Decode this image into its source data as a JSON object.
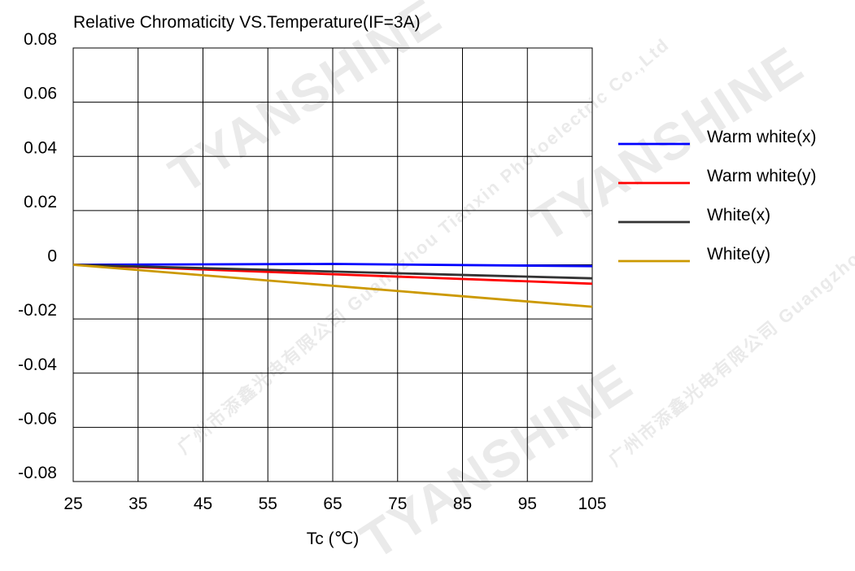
{
  "watermark": {
    "brand": "TYANSHINE",
    "company": "广州市添鑫光电有限公司 Guangzhou Tianxin Photoelectric Co.,Ltd"
  },
  "chart_data": {
    "type": "line",
    "title": "Relative Chromaticity VS.Temperature(IF=3A)",
    "xlabel": "Tc (℃)",
    "ylabel": "",
    "xlim": [
      25,
      105
    ],
    "ylim": [
      -0.08,
      0.08
    ],
    "x_ticks": [
      25,
      35,
      45,
      55,
      65,
      75,
      85,
      95,
      105
    ],
    "y_ticks": [
      0.08,
      0.06,
      0.04,
      0.02,
      0,
      -0.02,
      -0.04,
      -0.06,
      -0.08
    ],
    "y_tick_labels": [
      "0.08",
      "0.06",
      "0.04",
      "0.02",
      "0",
      "-0.02",
      "-0.04",
      "-0.06",
      "-0.08"
    ],
    "grid": true,
    "legend_position": "right",
    "series": [
      {
        "name": "Warm white(x)",
        "color": "#0000ff",
        "x": [
          25,
          65,
          105
        ],
        "y": [
          0,
          0.0003,
          -0.0005
        ]
      },
      {
        "name": "Warm white(y)",
        "color": "#ff0000",
        "x": [
          25,
          105
        ],
        "y": [
          0,
          -0.007
        ]
      },
      {
        "name": "White(x)",
        "color": "#333333",
        "x": [
          25,
          105
        ],
        "y": [
          0,
          -0.005
        ]
      },
      {
        "name": "White(y)",
        "color": "#cc9900",
        "x": [
          25,
          105
        ],
        "y": [
          0,
          -0.0155
        ]
      }
    ]
  }
}
